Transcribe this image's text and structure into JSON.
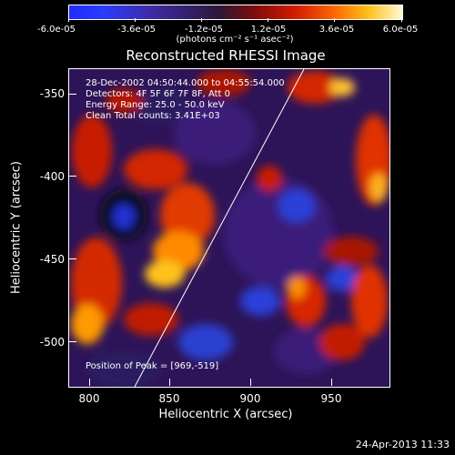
{
  "colorbar": {
    "labels": [
      "-6.0e-05",
      "-3.6e-05",
      "-1.2e-05",
      "1.2e-05",
      "3.6e-05",
      "6.0e-05"
    ],
    "units": "(photons cm⁻² s⁻¹ asec⁻²)"
  },
  "plot": {
    "title": "Reconstructed RHESSI Image",
    "info_lines": [
      "28-Dec-2002 04:50:44.000 to 04:55:54.000",
      "Detectors: 4F 5F 6F 7F 8F, Att 0",
      "Energy Range: 25.0 - 50.0 keV",
      "Clean     Total counts: 3.41E+03"
    ],
    "peak_text": "Position of Peak = [969,-519]",
    "xlabel": "Heliocentric X (arcsec)",
    "ylabel": "Heliocentric Y (arcsec)",
    "xticks": [
      "800",
      "850",
      "900",
      "950"
    ],
    "yticks": [
      "-350",
      "-400",
      "-450",
      "-500"
    ]
  },
  "footer": {
    "date": "24-Apr-2013 11:33"
  },
  "colors": {
    "background": "#000000",
    "limb_line": "#ffffff"
  }
}
